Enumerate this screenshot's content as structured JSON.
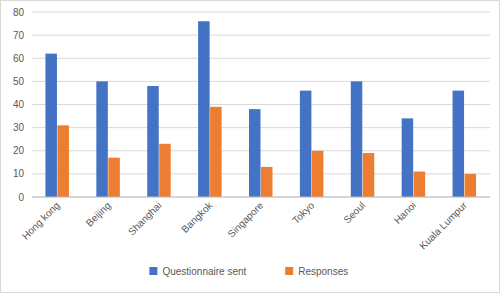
{
  "chart_data": {
    "type": "bar",
    "categories": [
      "Hong kong",
      "Beijing",
      "Shanghai",
      "Bangkok",
      "Singapore",
      "Tokyo",
      "Seoul",
      "Hanoi",
      "Kuala Lumpur"
    ],
    "series": [
      {
        "name": "Questionnaire sent",
        "color": "#4472c4",
        "values": [
          62,
          50,
          48,
          76,
          38,
          46,
          50,
          34,
          46
        ]
      },
      {
        "name": "Responses",
        "color": "#ed7d31",
        "values": [
          31,
          17,
          23,
          39,
          13,
          20,
          19,
          11,
          10
        ]
      }
    ],
    "ylim": [
      0,
      80
    ],
    "yticks": [
      0,
      10,
      20,
      30,
      40,
      50,
      60,
      70,
      80
    ],
    "grid": true,
    "legend": "bottom"
  }
}
